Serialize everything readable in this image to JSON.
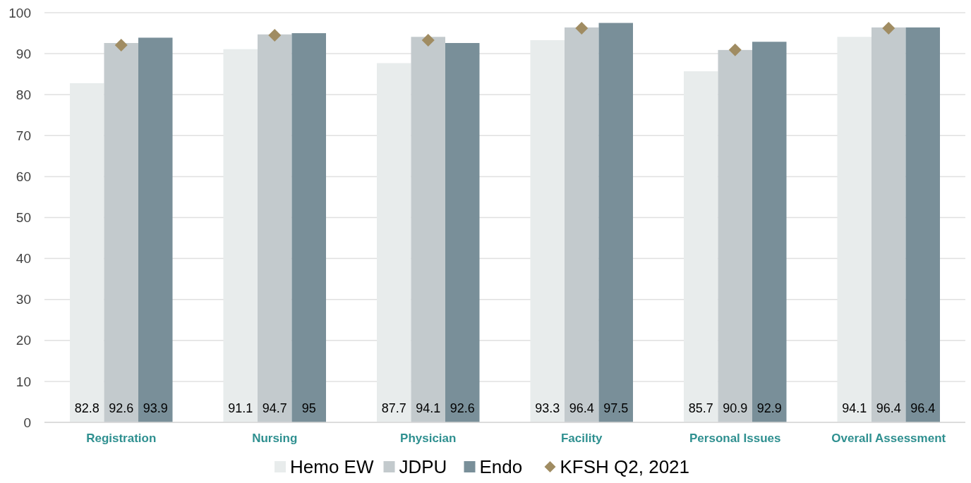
{
  "chart_data": {
    "type": "bar",
    "categories": [
      "Registration",
      "Nursing",
      "Physician",
      "Facility",
      "Personal Issues",
      "Overall Assessment"
    ],
    "series": [
      {
        "name": "Hemo EW",
        "color": "#e8ecec",
        "values": [
          82.8,
          91.1,
          87.7,
          93.3,
          85.7,
          94.1
        ],
        "value_labels": [
          "82.8",
          "91.1",
          "87.7",
          "93.3",
          "85.7",
          "94.1"
        ]
      },
      {
        "name": "JDPU",
        "color": "#c3cacd",
        "values": [
          92.6,
          94.7,
          94.1,
          96.4,
          90.9,
          96.4
        ],
        "value_labels": [
          "92.6",
          "94.7",
          "94.1",
          "96.4",
          "90.9",
          "96.4"
        ]
      },
      {
        "name": "Endo",
        "color": "#798f99",
        "values": [
          93.9,
          95,
          92.6,
          97.5,
          92.9,
          96.4
        ],
        "value_labels": [
          "93.9",
          "95",
          "92.6",
          "97.5",
          "92.9",
          "96.4"
        ]
      },
      {
        "name": "KFSH Q2, 2021",
        "type": "scatter",
        "color": "#a08c62",
        "marker": "diamond",
        "x": [
          "Registration",
          "Nursing",
          "Physician",
          "Facility",
          "Personal Issues",
          "Overall Assessment"
        ],
        "values": [
          92.1,
          94.5,
          93.3,
          96.2,
          90.9,
          96.2
        ]
      }
    ],
    "ylim": [
      0,
      100
    ],
    "yticks": [
      0,
      10,
      20,
      30,
      40,
      50,
      60,
      70,
      80,
      90,
      100
    ],
    "grid": "y",
    "legend": "bottom"
  }
}
